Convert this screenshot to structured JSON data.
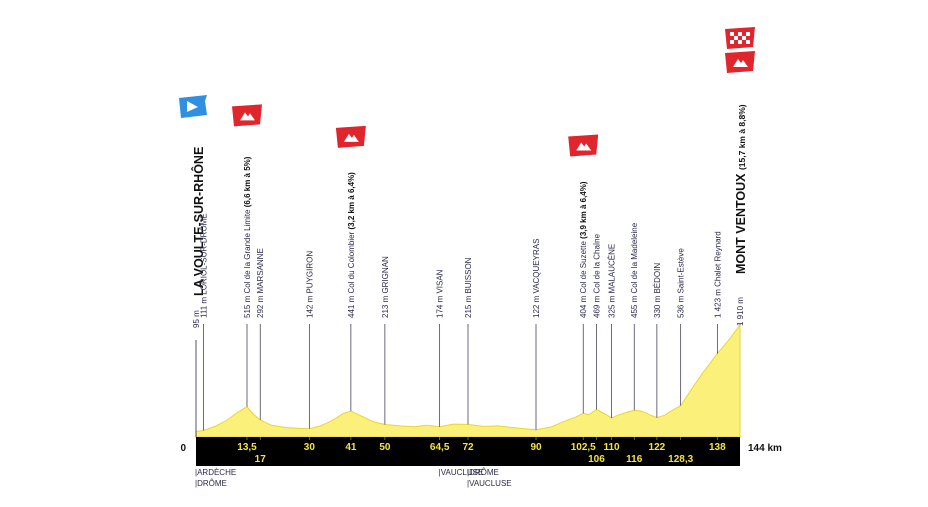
{
  "chart_data": {
    "type": "area",
    "title": "",
    "xlabel": "",
    "ylabel": "",
    "xlim": [
      0,
      144
    ],
    "ylim": [
      0,
      1910
    ],
    "axis": {
      "zero_label": "0",
      "end_label": "144 km"
    },
    "km_ticks": [
      {
        "km": 13.5,
        "label": "13,5",
        "row": "upper"
      },
      {
        "km": 17,
        "label": "17",
        "row": "lower"
      },
      {
        "km": 30,
        "label": "30",
        "row": "upper"
      },
      {
        "km": 41,
        "label": "41",
        "row": "upper"
      },
      {
        "km": 50,
        "label": "50",
        "row": "upper"
      },
      {
        "km": 64.5,
        "label": "64,5",
        "row": "upper"
      },
      {
        "km": 72,
        "label": "72",
        "row": "upper"
      },
      {
        "km": 90,
        "label": "90",
        "row": "upper"
      },
      {
        "km": 102.5,
        "label": "102,5",
        "row": "upper"
      },
      {
        "km": 106,
        "label": "106",
        "row": "lower"
      },
      {
        "km": 110,
        "label": "110",
        "row": "upper"
      },
      {
        "km": 116,
        "label": "116",
        "row": "lower"
      },
      {
        "km": 122,
        "label": "122",
        "row": "upper"
      },
      {
        "km": 128.3,
        "label": "128,3",
        "row": "lower"
      },
      {
        "km": 138,
        "label": "138",
        "row": "upper"
      }
    ],
    "waypoints": [
      {
        "km": 0,
        "alt": 95,
        "label": "95 m",
        "name": "LA VOULTE-SUR-RHÔNE",
        "kind": "start"
      },
      {
        "km": 2,
        "alt": 111,
        "label": "111 m LORIOL-SUR-DRÔME",
        "kind": "place"
      },
      {
        "km": 13.5,
        "alt": 515,
        "label": "515 m Col de la Grande Limite",
        "climb": "(6,6 km à 5%)",
        "kind": "climb"
      },
      {
        "km": 17,
        "alt": 292,
        "label": "292 m MARSANNE",
        "kind": "place"
      },
      {
        "km": 30,
        "alt": 142,
        "label": "142 m PUYGIRON",
        "kind": "place"
      },
      {
        "km": 41,
        "alt": 441,
        "label": "441 m Col du Colombier",
        "climb": "(3,2 km à 6,4%)",
        "kind": "climb"
      },
      {
        "km": 50,
        "alt": 213,
        "label": "213 m GRIGNAN",
        "kind": "place"
      },
      {
        "km": 64.5,
        "alt": 174,
        "label": "174 m VISAN",
        "kind": "place"
      },
      {
        "km": 72,
        "alt": 215,
        "label": "215 m BUISSON",
        "kind": "place"
      },
      {
        "km": 90,
        "alt": 122,
        "label": "122 m VACQUEYRAS",
        "kind": "place"
      },
      {
        "km": 102.5,
        "alt": 404,
        "label": "404 m Col de Suzette",
        "climb": "(3,9 km à 6,4%)",
        "kind": "climb"
      },
      {
        "km": 106,
        "alt": 469,
        "label": "469 m Col de la Chaîne",
        "kind": "place"
      },
      {
        "km": 110,
        "alt": 325,
        "label": "325 m MALAUCÈNE",
        "kind": "place"
      },
      {
        "km": 116,
        "alt": 455,
        "label": "455 m Col de la Madeleine",
        "kind": "place"
      },
      {
        "km": 122,
        "alt": 330,
        "label": "330 m BÉDOIN",
        "kind": "place"
      },
      {
        "km": 128.3,
        "alt": 536,
        "label": "536 m Saint-Estève",
        "kind": "place"
      },
      {
        "km": 138,
        "alt": 1423,
        "label": "1 423 m Chalet Reynard",
        "kind": "place"
      },
      {
        "km": 144,
        "alt": 1910,
        "label": "1 910 m",
        "name": "MONT VENTOUX",
        "climb": "(15,7 km à 8,8%)",
        "kind": "finish"
      }
    ],
    "profile": [
      [
        0,
        95
      ],
      [
        2,
        111
      ],
      [
        5,
        180
      ],
      [
        8,
        280
      ],
      [
        11,
        420
      ],
      [
        13.5,
        515
      ],
      [
        15,
        400
      ],
      [
        17,
        292
      ],
      [
        20,
        200
      ],
      [
        24,
        160
      ],
      [
        27,
        150
      ],
      [
        30,
        142
      ],
      [
        33,
        190
      ],
      [
        36,
        280
      ],
      [
        39,
        400
      ],
      [
        41,
        441
      ],
      [
        44,
        350
      ],
      [
        47,
        260
      ],
      [
        50,
        213
      ],
      [
        54,
        190
      ],
      [
        58,
        175
      ],
      [
        61,
        200
      ],
      [
        64.5,
        174
      ],
      [
        68,
        220
      ],
      [
        72,
        215
      ],
      [
        76,
        180
      ],
      [
        80,
        190
      ],
      [
        84,
        160
      ],
      [
        87,
        140
      ],
      [
        90,
        122
      ],
      [
        94,
        170
      ],
      [
        98,
        280
      ],
      [
        100.5,
        340
      ],
      [
        102.5,
        404
      ],
      [
        104,
        380
      ],
      [
        106,
        469
      ],
      [
        108,
        400
      ],
      [
        110,
        325
      ],
      [
        112,
        380
      ],
      [
        114,
        420
      ],
      [
        116,
        455
      ],
      [
        118,
        440
      ],
      [
        120,
        380
      ],
      [
        122,
        330
      ],
      [
        124,
        370
      ],
      [
        126,
        450
      ],
      [
        128.3,
        536
      ],
      [
        131,
        800
      ],
      [
        134,
        1080
      ],
      [
        136,
        1250
      ],
      [
        138,
        1423
      ],
      [
        141,
        1650
      ],
      [
        144,
        1910
      ]
    ],
    "regions": [
      {
        "km": 0,
        "lines": [
          "ARDÈCHE",
          "DRÔME"
        ]
      },
      {
        "km": 64.5,
        "lines": [
          "VAUCLUSE"
        ]
      },
      {
        "km": 72,
        "lines": [
          "DRÔME",
          "VAUCLUSE"
        ]
      }
    ],
    "colors": {
      "profile_fill": "#fbf07a",
      "profile_edge": "#e8d53a",
      "axis_bar": "#000000",
      "km_label": "#f5e43a",
      "flag_climb": "#e0252d",
      "flag_start": "#2f8fe0",
      "text": "#2a2a4a"
    },
    "icons": {
      "start_flag": "start-arrow-icon",
      "climb_flag": "mountain-flag-icon",
      "finish_flag": "checkered-flag-icon"
    }
  }
}
